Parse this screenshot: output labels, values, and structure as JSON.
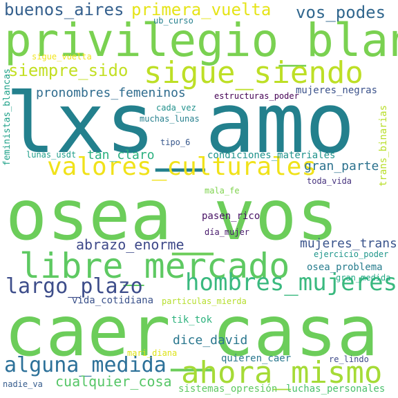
{
  "words": [
    {
      "id": "lxs_amo",
      "text": "lxs_amo",
      "color": "#23808d"
    },
    {
      "id": "osea_vos",
      "text": "osea_vos",
      "color": "#6ccd5a"
    },
    {
      "id": "caer_casa",
      "text": "caer_casa",
      "color": "#6ccd5a"
    },
    {
      "id": "privilegio_blanco",
      "text": "privilegio_blanco",
      "color": "#7ad151"
    },
    {
      "id": "sigue_siendo",
      "text": "sigue_siendo",
      "color": "#bddf26"
    },
    {
      "id": "libre_mercado",
      "text": "libre_mercado",
      "color": "#5ec962"
    },
    {
      "id": "ahora_mismo",
      "text": "ahora_mismo",
      "color": "#a5db36"
    },
    {
      "id": "valores_culturales",
      "text": "valores_culturales",
      "color": "#f0e21a"
    },
    {
      "id": "hombres_mujeres",
      "text": "hombres_mujeres",
      "color": "#3ab97f"
    },
    {
      "id": "alguna_medida",
      "text": "alguna_medida",
      "color": "#2d7199"
    },
    {
      "id": "largo_plazo",
      "text": "largo_plazo",
      "color": "#3d4d8a"
    },
    {
      "id": "buenos_aires",
      "text": "buenos_aires",
      "color": "#35608d"
    },
    {
      "id": "primera_vuelta",
      "text": "primera_vuelta",
      "color": "#e5e419"
    },
    {
      "id": "vos_podes",
      "text": "vos_podes",
      "color": "#31678e"
    },
    {
      "id": "siempre_sido",
      "text": "siempre_sido",
      "color": "#c2df23"
    },
    {
      "id": "pronombres_femeninos",
      "text": "pronombres_femeninos",
      "color": "#2f6c8e"
    },
    {
      "id": "abrazo_enorme",
      "text": "abrazo_enorme",
      "color": "#3e4989"
    },
    {
      "id": "cualquier_cosa",
      "text": "cualquier_cosa",
      "color": "#56c667"
    },
    {
      "id": "mujeres_trans",
      "text": "mujeres_trans",
      "color": "#3a548c"
    },
    {
      "id": "dice_david",
      "text": "dice_david",
      "color": "#2a778e"
    },
    {
      "id": "gran_parte",
      "text": "gran_parte",
      "color": "#2c728e"
    },
    {
      "id": "tan_claro",
      "text": "tan_claro",
      "color": "#2ab07f"
    },
    {
      "id": "ub_curso",
      "text": "ub_curso",
      "color": "#26818e"
    },
    {
      "id": "sigue_vuelta",
      "text": "sigue_vuelta",
      "color": "#f1e51d"
    },
    {
      "id": "cada_vez",
      "text": "cada_vez",
      "color": "#21918c"
    },
    {
      "id": "estructuras_poder",
      "text": "estructuras_poder",
      "color": "#440154"
    },
    {
      "id": "mujeres_negras",
      "text": "mujeres_negras",
      "color": "#3b528b"
    },
    {
      "id": "muchas_lunas",
      "text": "muchas_lunas",
      "color": "#27808e"
    },
    {
      "id": "tipo_6",
      "text": "tipo_6",
      "color": "#38588c"
    },
    {
      "id": "lunas_usdt",
      "text": "lunas_usdt",
      "color": "#1f9e89"
    },
    {
      "id": "condiciones_materiales",
      "text": "condiciones_materiales",
      "color": "#20938c"
    },
    {
      "id": "toda_vida",
      "text": "toda_vida",
      "color": "#46327e"
    },
    {
      "id": "mala_fe",
      "text": "mala_fe",
      "color": "#7fd34e"
    },
    {
      "id": "pasen_rico",
      "text": "pasen_rico",
      "color": "#471164"
    },
    {
      "id": "dia_mujer",
      "text": "día_mujer",
      "color": "#481a6c"
    },
    {
      "id": "ejercicio_poder",
      "text": "ejercicio_poder",
      "color": "#1f968b"
    },
    {
      "id": "osea_problema",
      "text": "osea_problema",
      "color": "#287d8e"
    },
    {
      "id": "gran_medida",
      "text": "gran_medida",
      "color": "#22a884"
    },
    {
      "id": "vida_cotidiana",
      "text": "vida_cotidiana",
      "color": "#3b528b"
    },
    {
      "id": "particulas_mierda",
      "text": "particulas_mierda",
      "color": "#b5de2b"
    },
    {
      "id": "tik_tok",
      "text": "tik_tok",
      "color": "#2db27d"
    },
    {
      "id": "mari_diana",
      "text": "mari_diana",
      "color": "#dde318"
    },
    {
      "id": "quieren_caer",
      "text": "quieren_caer",
      "color": "#2a788e"
    },
    {
      "id": "re_lindo",
      "text": "re_lindo",
      "color": "#3e4a89"
    },
    {
      "id": "nadie_va",
      "text": "nadie_va",
      "color": "#365c8d"
    },
    {
      "id": "sistemas_opresion",
      "text": "sistemas_opresión",
      "color": "#5ec962"
    },
    {
      "id": "luchas_personales",
      "text": "luchas_personales",
      "color": "#4ac16d"
    },
    {
      "id": "feministas_blancas",
      "text": "feministas_blancas",
      "color": "#1fa188"
    },
    {
      "id": "trans_binarias",
      "text": "trans_binarias",
      "color": "#b8de29"
    }
  ]
}
